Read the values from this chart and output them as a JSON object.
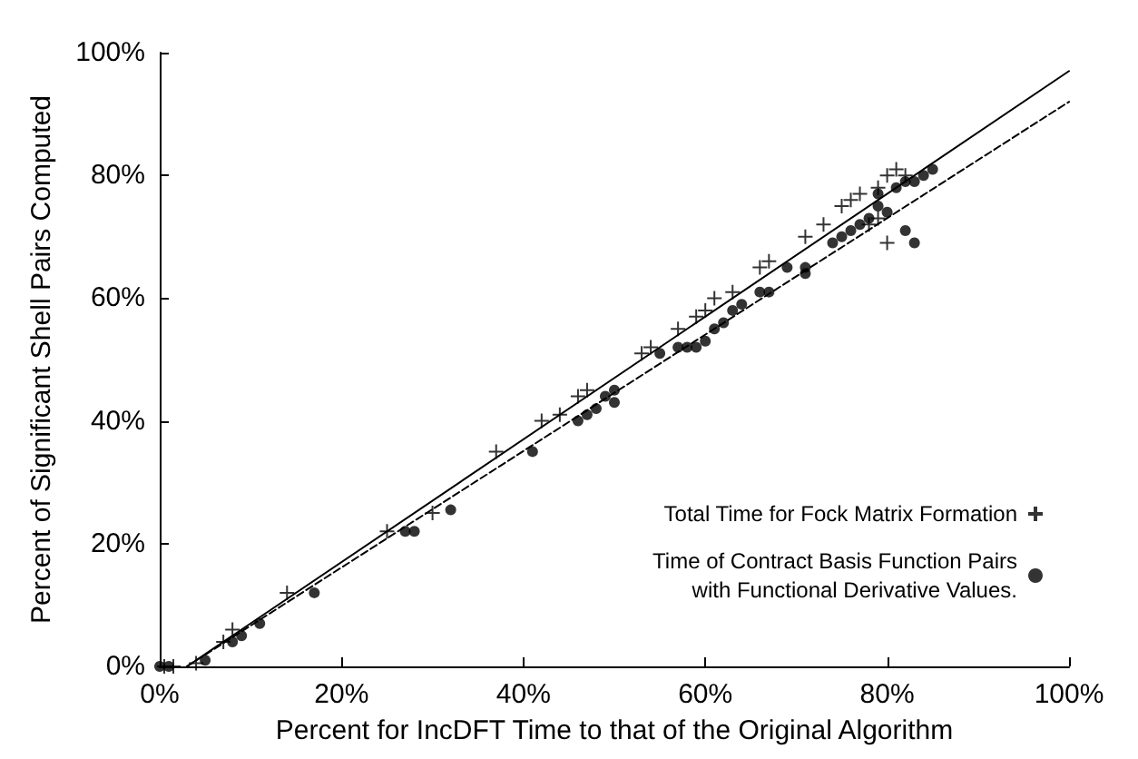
{
  "chart_data": {
    "type": "scatter",
    "xlabel": "Percent for IncDFT Time to that of the Original Algorithm",
    "ylabel": "Percent of Significant Shell Pairs Computed",
    "xlim": [
      0,
      100
    ],
    "xticks": [
      {
        "value": 0,
        "label": "0%"
      },
      {
        "value": 20,
        "label": "20%"
      },
      {
        "value": 40,
        "label": "40%"
      },
      {
        "value": 60,
        "label": "60%"
      },
      {
        "value": 80,
        "label": "80%"
      },
      {
        "value": 100,
        "label": "100%"
      }
    ],
    "ylim": [
      0,
      100
    ],
    "yticks": [
      {
        "value": 0,
        "label": "0%"
      },
      {
        "value": 20,
        "label": "20%"
      },
      {
        "value": 40,
        "label": "40%"
      },
      {
        "value": 60,
        "label": "60%"
      },
      {
        "value": 80,
        "label": "80%"
      },
      {
        "value": 100,
        "label": "100%"
      }
    ],
    "grid": false,
    "legend": "bottom right",
    "series": [
      {
        "name": "Total Time for Fock Matrix Formation",
        "color": "#000000",
        "marker": "cross",
        "x": [
          0.5,
          1.5,
          4,
          7,
          8,
          14,
          25,
          30,
          37,
          42,
          44,
          46,
          47,
          53,
          54,
          57,
          59,
          60,
          61,
          63,
          66,
          67,
          71,
          73,
          75,
          76,
          77,
          79,
          80,
          81,
          82,
          79,
          80,
          78
        ],
        "values": [
          0,
          0,
          0.5,
          4,
          6,
          12,
          22,
          25,
          35,
          40,
          41,
          44,
          45,
          51,
          52,
          55,
          57,
          58,
          60,
          61,
          65,
          66,
          70,
          72,
          75,
          76,
          77,
          78,
          80,
          81,
          80,
          73,
          69,
          72
        ]
      },
      {
        "name": "Time of Contract Basis Function Pairs\nwith Functional Derivative Values.",
        "color": "#000000",
        "marker": "circle",
        "x": [
          0,
          1,
          5,
          8,
          9,
          11,
          17,
          27,
          28,
          32,
          41,
          46,
          47,
          48,
          49,
          50,
          50,
          55,
          57,
          58,
          59,
          60,
          61,
          62,
          63,
          64,
          66,
          67,
          69,
          71,
          71,
          74,
          75,
          76,
          77,
          78,
          79,
          80,
          79,
          81,
          82,
          83,
          84,
          85,
          82,
          83
        ],
        "values": [
          0,
          0,
          1,
          4,
          5,
          7,
          12,
          22,
          22,
          25.5,
          35,
          40,
          41,
          42,
          44,
          43,
          45,
          51,
          52,
          52,
          52,
          53,
          55,
          56,
          58,
          59,
          61,
          61,
          65,
          65,
          64,
          69,
          70,
          71,
          72,
          73,
          75,
          74,
          77,
          78,
          79,
          79,
          80,
          81,
          71,
          69
        ]
      },
      {
        "type": "line",
        "color": "#000000",
        "line_style": "solid",
        "marker": "none",
        "x": [
          3,
          100
        ],
        "values": [
          0,
          97
        ]
      },
      {
        "type": "line",
        "color": "#000000",
        "line_style": "dashed",
        "marker": "none",
        "x": [
          3,
          100
        ],
        "values": [
          0,
          92
        ]
      }
    ]
  }
}
